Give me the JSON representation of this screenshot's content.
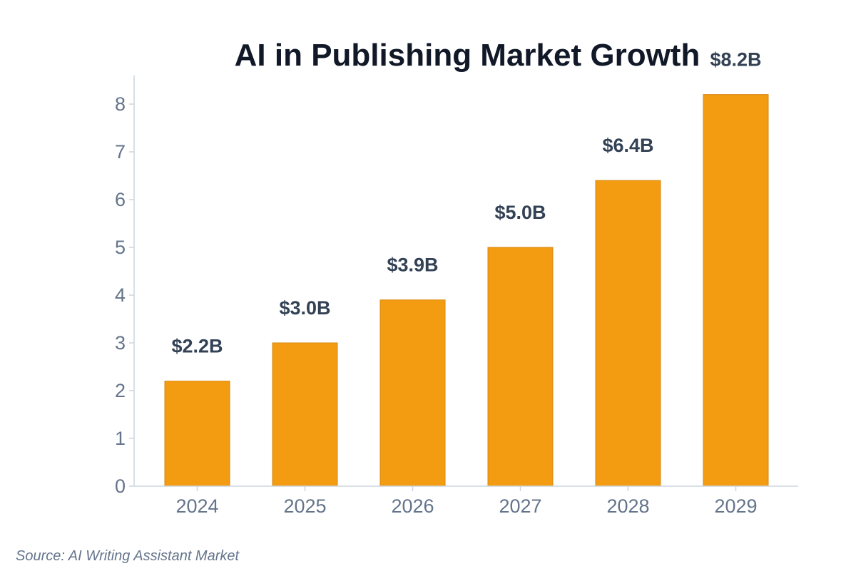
{
  "chart_data": {
    "type": "bar",
    "title": "AI in Publishing Market Growth",
    "categories": [
      "2024",
      "2025",
      "2026",
      "2027",
      "2028",
      "2029"
    ],
    "values": [
      2.2,
      3.0,
      3.9,
      5.0,
      6.4,
      8.2
    ],
    "data_labels": [
      "$2.2B",
      "$3.0B",
      "$3.9B",
      "$5.0B",
      "$6.4B",
      "$8.2B"
    ],
    "xlabel": "",
    "ylabel": "",
    "ylim": [
      0,
      8.6
    ],
    "yticks": [
      "0",
      "1",
      "2",
      "3",
      "4",
      "5",
      "6",
      "7",
      "8"
    ],
    "grid": false,
    "legend": "none",
    "colors": {
      "bar": "#f39c12",
      "bar_edge": "#d68910",
      "axis": "#cbd5e1"
    }
  },
  "source": "Source: AI Writing Assistant Market"
}
